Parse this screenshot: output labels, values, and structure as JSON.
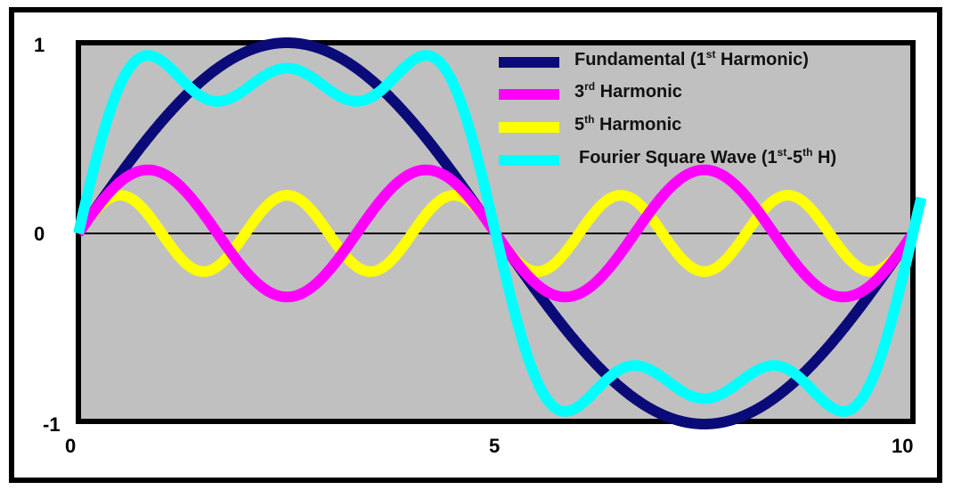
{
  "chart_data": {
    "type": "line",
    "title": "",
    "xlabel": "",
    "ylabel": "",
    "xlim": [
      0,
      10
    ],
    "ylim": [
      -1,
      1
    ],
    "x_ticks": [
      "0",
      "5",
      "10"
    ],
    "y_ticks": [
      "1",
      "0",
      "-1"
    ],
    "grid": false,
    "zero_line": true,
    "background_color": "#c0c0c0",
    "legend_placement": "top-right",
    "series": [
      {
        "key": "fundamental",
        "name_main": "Fundamental (1",
        "name_sup": "st",
        "name_tail": " Harmonic)",
        "harmonic": 1,
        "amplitude": 1.0,
        "period": 10,
        "color": "#0a0a78"
      },
      {
        "key": "third",
        "name_main": "3",
        "name_sup": "rd",
        "name_tail": " Harmonic",
        "harmonic": 3,
        "amplitude": 0.3333,
        "period": 3.333,
        "color": "#ff00ff"
      },
      {
        "key": "fifth",
        "name_main": "5",
        "name_sup": "th",
        "name_tail": " Harmonic",
        "harmonic": 5,
        "amplitude": 0.2,
        "period": 2,
        "color": "#ffff00"
      },
      {
        "key": "square",
        "name_main": "Fourier Square Wave (1",
        "name_sup": "st",
        "name_mid": "-5",
        "name_sup2": "th",
        "name_tail": " H)",
        "harmonic": "1+3+5",
        "amplitude": 0.9,
        "color": "#00ffff"
      }
    ]
  }
}
